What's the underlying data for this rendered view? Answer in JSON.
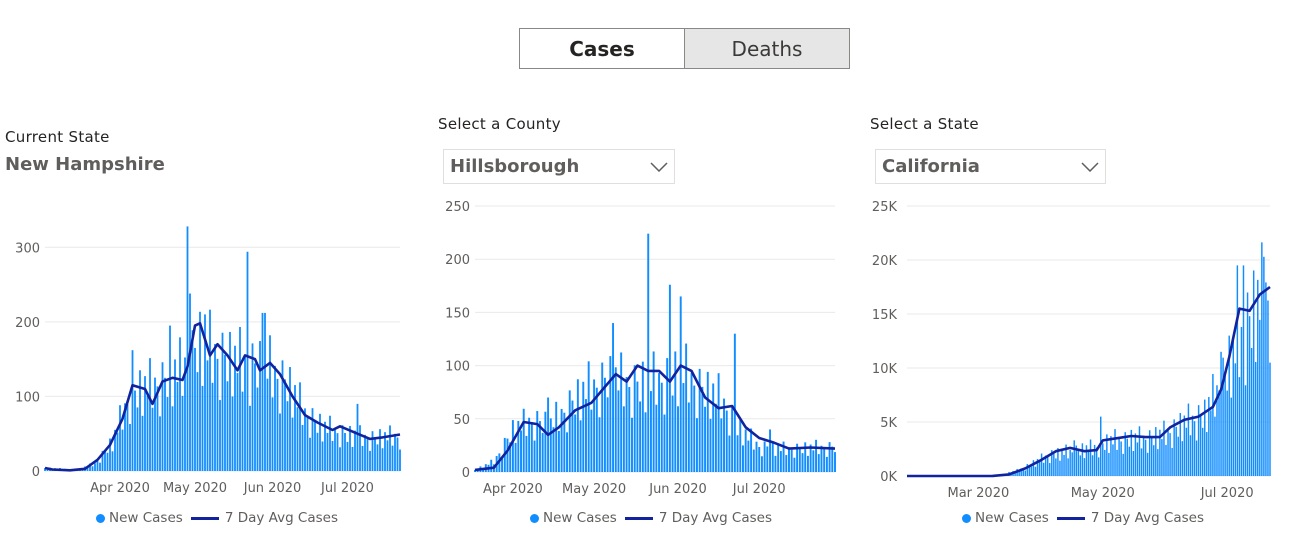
{
  "toggle": {
    "cases_label": "Cases",
    "deaths_label": "Deaths",
    "selected": "Cases"
  },
  "colors": {
    "bar": "#118dff",
    "avg": "#12239e",
    "grid": "#e9e9e9"
  },
  "panels": {
    "state_current": {
      "label": "Current State",
      "value": "New Hampshire"
    },
    "county": {
      "label": "Select a County",
      "value": "Hillsborough",
      "icon": "chevron-down-icon"
    },
    "state_select": {
      "label": "Select a State",
      "value": "California",
      "icon": "chevron-down-icon"
    }
  },
  "legend": {
    "bar_label": "New Cases",
    "line_label": "7 Day Avg Cases"
  },
  "chart_data": [
    {
      "type": "bar",
      "title": "",
      "x_start": "2020-03-02",
      "x_end": "2020-07-22",
      "y_ticks": [
        0,
        100,
        200,
        300
      ],
      "y_tick_labels": [
        "0",
        "100",
        "200",
        "300"
      ],
      "ylim": [
        0,
        350
      ],
      "x_ticks": [
        {
          "date": "2020-04-01",
          "label": "Apr 2020"
        },
        {
          "date": "2020-05-01",
          "label": "May 2020"
        },
        {
          "date": "2020-06-01",
          "label": "Jun 2020"
        },
        {
          "date": "2020-07-01",
          "label": "Jul 2020"
        }
      ],
      "series": [
        {
          "name": "New Cases",
          "kind": "bar",
          "keypoints": [
            [
              "2020-03-02",
              4
            ],
            [
              "2020-03-15",
              2
            ],
            [
              "2020-03-22",
              10
            ],
            [
              "2020-03-29",
              40
            ],
            [
              "2020-04-05",
              105
            ],
            [
              "2020-04-12",
              115
            ],
            [
              "2020-04-19",
              125
            ],
            [
              "2020-04-26",
              140
            ],
            [
              "2020-05-03",
              175
            ],
            [
              "2020-05-10",
              160
            ],
            [
              "2020-05-17",
              150
            ],
            [
              "2020-05-24",
              145
            ],
            [
              "2020-05-31",
              140
            ],
            [
              "2020-06-07",
              120
            ],
            [
              "2020-06-14",
              80
            ],
            [
              "2020-06-21",
              60
            ],
            [
              "2020-07-01",
              50
            ],
            [
              "2020-07-10",
              45
            ],
            [
              "2020-07-22",
              48
            ]
          ],
          "spikes": [
            [
              "2020-04-06",
              162
            ],
            [
              "2020-04-21",
              195
            ],
            [
              "2020-04-28",
              328
            ],
            [
              "2020-04-29",
              238
            ],
            [
              "2020-05-05",
              210
            ],
            [
              "2020-05-22",
              294
            ],
            [
              "2020-05-28",
              212
            ],
            [
              "2020-05-29",
              212
            ],
            [
              "2020-07-05",
              90
            ]
          ]
        },
        {
          "name": "7 Day Avg Cases",
          "kind": "line",
          "points": [
            [
              "2020-03-02",
              4
            ],
            [
              "2020-03-05",
              2
            ],
            [
              "2020-03-12",
              1
            ],
            [
              "2020-03-18",
              3
            ],
            [
              "2020-03-23",
              15
            ],
            [
              "2020-03-28",
              35
            ],
            [
              "2020-04-02",
              70
            ],
            [
              "2020-04-06",
              115
            ],
            [
              "2020-04-11",
              110
            ],
            [
              "2020-04-14",
              90
            ],
            [
              "2020-04-18",
              120
            ],
            [
              "2020-04-22",
              125
            ],
            [
              "2020-04-26",
              122
            ],
            [
              "2020-04-28",
              140
            ],
            [
              "2020-05-01",
              195
            ],
            [
              "2020-05-03",
              198
            ],
            [
              "2020-05-07",
              155
            ],
            [
              "2020-05-10",
              170
            ],
            [
              "2020-05-14",
              155
            ],
            [
              "2020-05-18",
              135
            ],
            [
              "2020-05-21",
              155
            ],
            [
              "2020-05-25",
              150
            ],
            [
              "2020-05-27",
              135
            ],
            [
              "2020-05-31",
              145
            ],
            [
              "2020-06-04",
              130
            ],
            [
              "2020-06-09",
              100
            ],
            [
              "2020-06-14",
              75
            ],
            [
              "2020-06-19",
              65
            ],
            [
              "2020-06-25",
              55
            ],
            [
              "2020-06-28",
              60
            ],
            [
              "2020-07-05",
              50
            ],
            [
              "2020-07-10",
              43
            ],
            [
              "2020-07-15",
              45
            ],
            [
              "2020-07-22",
              49
            ]
          ]
        }
      ]
    },
    {
      "type": "bar",
      "title": "",
      "x_start": "2020-03-18",
      "x_end": "2020-07-29",
      "y_ticks": [
        0,
        50,
        100,
        150,
        200,
        250
      ],
      "y_tick_labels": [
        "0",
        "50",
        "100",
        "150",
        "200",
        "250"
      ],
      "ylim": [
        0,
        250
      ],
      "x_ticks": [
        {
          "date": "2020-04-01",
          "label": "Apr 2020"
        },
        {
          "date": "2020-05-01",
          "label": "May 2020"
        },
        {
          "date": "2020-06-01",
          "label": "Jun 2020"
        },
        {
          "date": "2020-07-01",
          "label": "Jul 2020"
        }
      ],
      "series": [
        {
          "name": "New Cases",
          "kind": "bar",
          "keypoints": [
            [
              "2020-03-18",
              2
            ],
            [
              "2020-03-25",
              10
            ],
            [
              "2020-04-01",
              40
            ],
            [
              "2020-04-08",
              50
            ],
            [
              "2020-04-15",
              45
            ],
            [
              "2020-04-22",
              65
            ],
            [
              "2020-04-29",
              80
            ],
            [
              "2020-05-06",
              90
            ],
            [
              "2020-05-13",
              85
            ],
            [
              "2020-05-20",
              85
            ],
            [
              "2020-05-27",
              90
            ],
            [
              "2020-06-03",
              95
            ],
            [
              "2020-06-10",
              80
            ],
            [
              "2020-06-17",
              70
            ],
            [
              "2020-06-24",
              40
            ],
            [
              "2020-07-01",
              25
            ],
            [
              "2020-07-10",
              22
            ],
            [
              "2020-07-29",
              24
            ]
          ],
          "spikes": [
            [
              "2020-04-14",
              70
            ],
            [
              "2020-05-08",
              140
            ],
            [
              "2020-05-21",
              224
            ],
            [
              "2020-05-29",
              176
            ],
            [
              "2020-06-02",
              165
            ],
            [
              "2020-06-22",
              130
            ],
            [
              "2020-07-05",
              40
            ]
          ]
        },
        {
          "name": "7 Day Avg Cases",
          "kind": "line",
          "points": [
            [
              "2020-03-18",
              2
            ],
            [
              "2020-03-25",
              4
            ],
            [
              "2020-03-30",
              20
            ],
            [
              "2020-04-05",
              47
            ],
            [
              "2020-04-10",
              45
            ],
            [
              "2020-04-14",
              35
            ],
            [
              "2020-04-18",
              42
            ],
            [
              "2020-04-24",
              58
            ],
            [
              "2020-04-30",
              65
            ],
            [
              "2020-05-05",
              80
            ],
            [
              "2020-05-09",
              92
            ],
            [
              "2020-05-13",
              85
            ],
            [
              "2020-05-17",
              100
            ],
            [
              "2020-05-21",
              95
            ],
            [
              "2020-05-25",
              95
            ],
            [
              "2020-05-29",
              85
            ],
            [
              "2020-06-02",
              100
            ],
            [
              "2020-06-06",
              95
            ],
            [
              "2020-06-11",
              70
            ],
            [
              "2020-06-16",
              60
            ],
            [
              "2020-06-21",
              62
            ],
            [
              "2020-06-26",
              42
            ],
            [
              "2020-07-01",
              32
            ],
            [
              "2020-07-06",
              28
            ],
            [
              "2020-07-12",
              22
            ],
            [
              "2020-07-20",
              23
            ],
            [
              "2020-07-29",
              22
            ]
          ]
        }
      ]
    },
    {
      "type": "bar",
      "title": "",
      "x_start": "2020-01-26",
      "x_end": "2020-07-22",
      "y_ticks": [
        0,
        5000,
        10000,
        15000,
        20000,
        25000
      ],
      "y_tick_labels": [
        "0K",
        "5K",
        "10K",
        "15K",
        "20K",
        "25K"
      ],
      "ylim": [
        0,
        25000
      ],
      "x_ticks": [
        {
          "date": "2020-03-01",
          "label": "Mar 2020"
        },
        {
          "date": "2020-05-01",
          "label": "May 2020"
        },
        {
          "date": "2020-07-01",
          "label": "Jul 2020"
        }
      ],
      "series": [
        {
          "name": "New Cases",
          "kind": "bar",
          "keypoints": [
            [
              "2020-01-26",
              0
            ],
            [
              "2020-03-10",
              20
            ],
            [
              "2020-03-20",
              500
            ],
            [
              "2020-03-28",
              1200
            ],
            [
              "2020-04-05",
              2000
            ],
            [
              "2020-04-15",
              2300
            ],
            [
              "2020-04-25",
              2600
            ],
            [
              "2020-05-05",
              3300
            ],
            [
              "2020-05-15",
              3500
            ],
            [
              "2020-05-25",
              3600
            ],
            [
              "2020-06-01",
              4000
            ],
            [
              "2020-06-10",
              5000
            ],
            [
              "2020-06-20",
              5800
            ],
            [
              "2020-06-26",
              8000
            ],
            [
              "2020-07-03",
              11000
            ],
            [
              "2020-07-10",
              14000
            ],
            [
              "2020-07-15",
              16000
            ],
            [
              "2020-07-22",
              17500
            ]
          ],
          "spikes": [
            [
              "2020-04-17",
              3300
            ],
            [
              "2020-04-30",
              5500
            ],
            [
              "2020-06-28",
              11500
            ],
            [
              "2020-07-02",
              13000
            ],
            [
              "2020-07-06",
              19500
            ],
            [
              "2020-07-09",
              19500
            ],
            [
              "2020-07-19",
              20300
            ]
          ]
        },
        {
          "name": "7 Day Avg Cases",
          "kind": "line",
          "points": [
            [
              "2020-01-26",
              0
            ],
            [
              "2020-03-08",
              5
            ],
            [
              "2020-03-16",
              150
            ],
            [
              "2020-03-24",
              700
            ],
            [
              "2020-04-01",
              1500
            ],
            [
              "2020-04-08",
              2300
            ],
            [
              "2020-04-15",
              2600
            ],
            [
              "2020-04-22",
              2300
            ],
            [
              "2020-04-28",
              2400
            ],
            [
              "2020-05-01",
              3300
            ],
            [
              "2020-05-08",
              3500
            ],
            [
              "2020-05-15",
              3700
            ],
            [
              "2020-05-22",
              3600
            ],
            [
              "2020-05-29",
              3600
            ],
            [
              "2020-06-03",
              4500
            ],
            [
              "2020-06-10",
              5200
            ],
            [
              "2020-06-17",
              5500
            ],
            [
              "2020-06-24",
              6400
            ],
            [
              "2020-06-28",
              8000
            ],
            [
              "2020-07-02",
              11000
            ],
            [
              "2020-07-07",
              15500
            ],
            [
              "2020-07-12",
              15300
            ],
            [
              "2020-07-17",
              16800
            ],
            [
              "2020-07-22",
              17500
            ]
          ]
        }
      ]
    }
  ]
}
